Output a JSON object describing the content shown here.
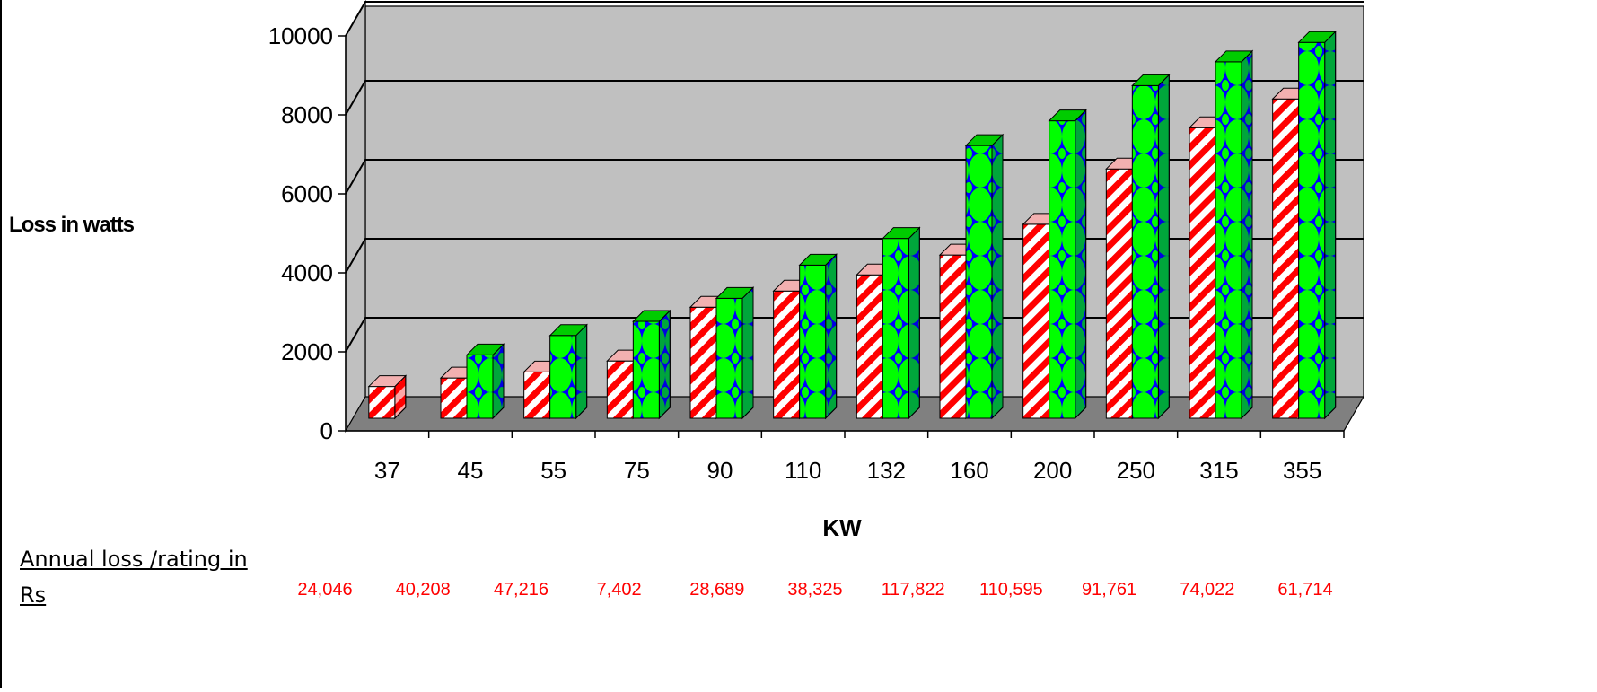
{
  "chart_data": {
    "type": "bar",
    "style": "3d-clustered-column",
    "categories": [
      "37",
      "45",
      "55",
      "75",
      "90",
      "110",
      "132",
      "160",
      "200",
      "250",
      "315",
      "355"
    ],
    "series": [
      {
        "color": "#ff0000",
        "pattern": "red-white-diagonal-stripes",
        "values": [
          720,
          930,
          1080,
          1350,
          2680,
          3080,
          3480,
          3970,
          4730,
          6100,
          7120,
          7830
        ]
      },
      {
        "color": "#00ee00",
        "pattern": "green-blue-diamond-check",
        "values": [
          null,
          1500,
          1980,
          2330,
          2900,
          3720,
          4380,
          6680,
          7290,
          8160,
          8750,
          9230
        ]
      }
    ],
    "xlabel": "KW",
    "ylabel": "Loss in watts",
    "ylim": [
      0,
      10000
    ],
    "yticks": [
      "0",
      "2000",
      "4000",
      "6000",
      "8000",
      "10000"
    ],
    "grid": true,
    "legend": "none",
    "wall_color": "#c0c0c0",
    "floor_color": "#808080",
    "annual_loss": {
      "label": "Annual loss /rating in Rs",
      "values": [
        "24,046",
        "40,208",
        "47,216",
        "7,402",
        "28,689",
        "38,325",
        "117,822",
        "110,595",
        "91,761",
        "74,022",
        "61,714"
      ],
      "color": "#ff0000"
    }
  }
}
